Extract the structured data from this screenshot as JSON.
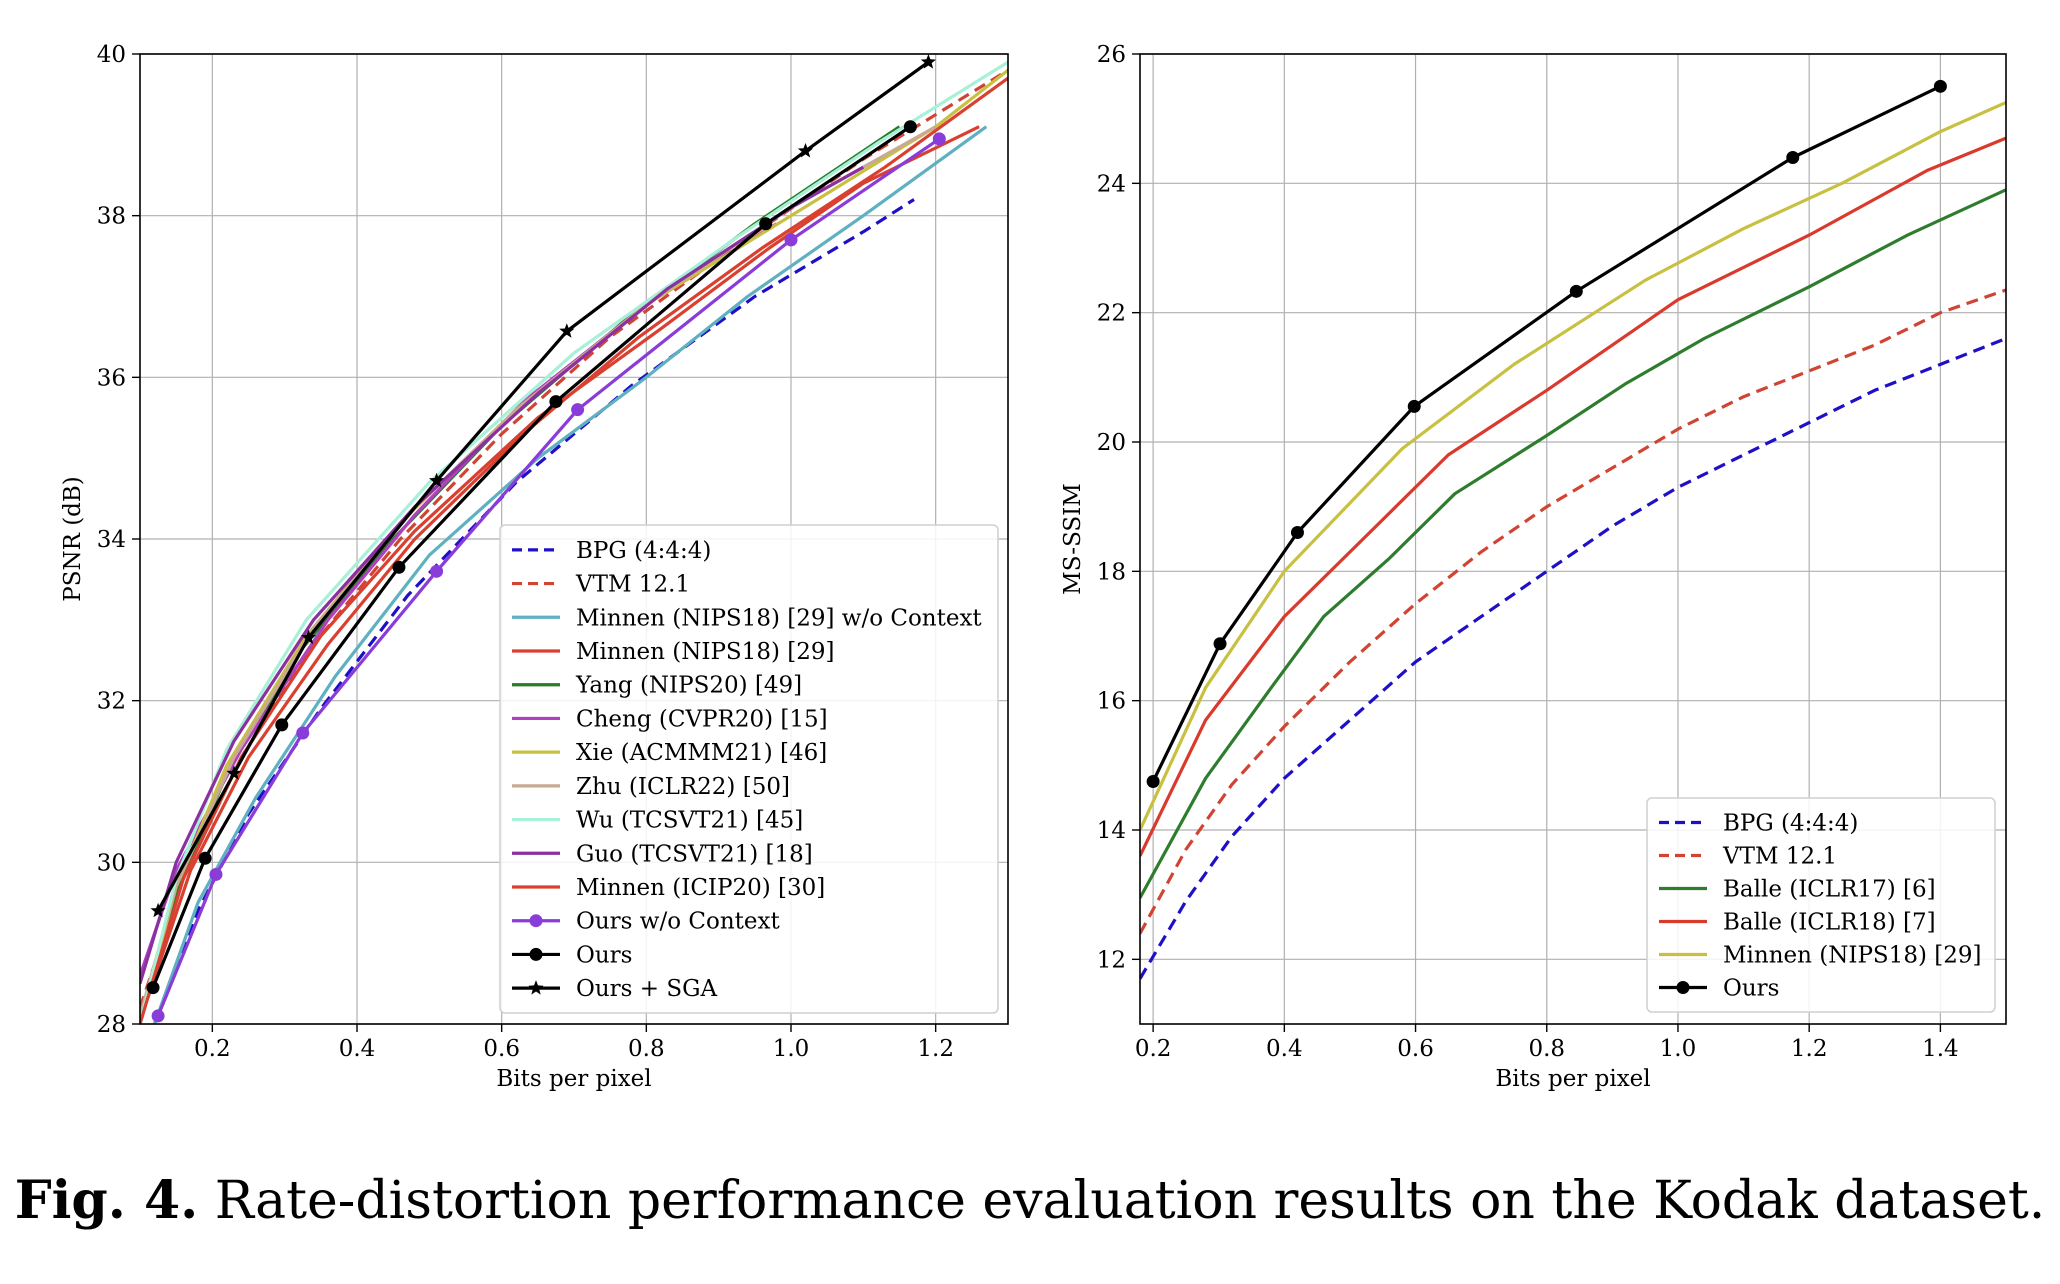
{
  "caption": {
    "label": "Fig. 4.",
    "text": "Rate-distortion performance evaluation results on the Kodak dataset."
  },
  "chart_data": [
    {
      "type": "line",
      "title": "",
      "xlabel": "Bits per pixel",
      "ylabel": "PSNR (dB)",
      "xlim": [
        0.1,
        1.3
      ],
      "ylim": [
        28,
        40
      ],
      "xticks": [
        "0.2",
        "0.4",
        "0.6",
        "0.8",
        "1.0",
        "1.2"
      ],
      "yticks": [
        "28",
        "30",
        "32",
        "34",
        "36",
        "38",
        "40"
      ],
      "grid": true,
      "legend_position": "lower-right",
      "series": [
        {
          "name": "BPG (4:4:4)",
          "color": "#1f10c8",
          "dash": "dashed",
          "marker": "none",
          "x": [
            0.12,
            0.18,
            0.25,
            0.35,
            0.47,
            0.62,
            0.78,
            0.95,
            1.1,
            1.17
          ],
          "y": [
            28.0,
            29.4,
            30.6,
            31.9,
            33.3,
            34.7,
            35.9,
            37.0,
            37.8,
            38.2
          ]
        },
        {
          "name": "VTM 12.1",
          "color": "#d04433",
          "dash": "dashed",
          "marker": "none",
          "x": [
            0.1,
            0.16,
            0.24,
            0.34,
            0.46,
            0.6,
            0.75,
            0.92,
            1.1,
            1.3
          ],
          "y": [
            28.2,
            29.8,
            31.3,
            32.7,
            34.0,
            35.3,
            36.5,
            37.6,
            38.7,
            39.8
          ]
        },
        {
          "name": "Minnen (NIPS18) [29] w/o Context",
          "color": "#5fb0c0",
          "dash": "solid",
          "marker": "none",
          "x": [
            0.12,
            0.18,
            0.26,
            0.37,
            0.5,
            0.65,
            0.8,
            0.94,
            1.1,
            1.27
          ],
          "y": [
            28.0,
            29.5,
            30.8,
            32.3,
            33.8,
            35.0,
            36.0,
            37.0,
            38.0,
            39.1
          ]
        },
        {
          "name": "Minnen (NIPS18) [29]",
          "color": "#d94030",
          "dash": "solid",
          "marker": "none",
          "x": [
            0.11,
            0.17,
            0.25,
            0.36,
            0.48,
            0.63,
            0.79,
            0.96,
            1.13,
            1.3
          ],
          "y": [
            28.3,
            29.9,
            31.3,
            32.7,
            34.0,
            35.3,
            36.5,
            37.6,
            38.6,
            39.7
          ]
        },
        {
          "name": "Yang (NIPS20) [49]",
          "color": "#2a7a2a",
          "dash": "solid",
          "marker": "none",
          "x": [
            0.1,
            0.15,
            0.22,
            0.32,
            0.45,
            0.6,
            0.77,
            0.95,
            1.15
          ],
          "y": [
            28.0,
            29.6,
            31.1,
            32.6,
            34.0,
            35.4,
            36.7,
            37.9,
            39.1
          ]
        },
        {
          "name": "Cheng (CVPR20) [15]",
          "color": "#b040c0",
          "dash": "solid",
          "marker": "none",
          "x": [
            0.1,
            0.15,
            0.24,
            0.36,
            0.48,
            0.63,
            0.8,
            0.98
          ],
          "y": [
            28.6,
            29.9,
            31.4,
            33.0,
            34.3,
            35.7,
            36.9,
            37.9
          ]
        },
        {
          "name": "Xie (ACMMM21) [46]",
          "color": "#c8c040",
          "dash": "solid",
          "marker": "none",
          "x": [
            0.1,
            0.15,
            0.22,
            0.33,
            0.46,
            0.62,
            0.8,
            1.0,
            1.2,
            1.3
          ],
          "y": [
            28.0,
            29.7,
            31.2,
            32.8,
            34.2,
            35.6,
            36.9,
            38.0,
            39.1,
            39.8
          ]
        },
        {
          "name": "Zhu (ICLR22) [50]",
          "color": "#c8aa90",
          "dash": "solid",
          "marker": "none",
          "x": [
            0.1,
            0.15,
            0.23,
            0.34,
            0.47,
            0.62,
            0.8,
            1.0,
            1.2
          ],
          "y": [
            28.1,
            29.7,
            31.3,
            32.9,
            34.3,
            35.6,
            36.9,
            38.1,
            39.1
          ]
        },
        {
          "name": "Wu (TCSVT21) [45]",
          "color": "#a8f0d8",
          "dash": "solid",
          "marker": "none",
          "x": [
            0.1,
            0.15,
            0.22,
            0.33,
            0.5,
            0.7,
            0.92,
            1.12,
            1.3
          ],
          "y": [
            28.0,
            29.8,
            31.4,
            33.0,
            34.7,
            36.3,
            37.7,
            38.9,
            39.9
          ]
        },
        {
          "name": "Guo (TCSVT21) [18]",
          "color": "#8a30a0",
          "dash": "solid",
          "marker": "none",
          "x": [
            0.1,
            0.15,
            0.23,
            0.34,
            0.48,
            0.65,
            0.83,
            1.0,
            1.1
          ],
          "y": [
            28.5,
            30.0,
            31.5,
            33.0,
            34.4,
            35.8,
            37.1,
            38.1,
            38.6
          ]
        },
        {
          "name": "Minnen (ICIP20) [30]",
          "color": "#d94030",
          "dash": "solid",
          "marker": "none",
          "x": [
            0.1,
            0.16,
            0.24,
            0.35,
            0.48,
            0.65,
            0.82,
            0.97,
            1.1,
            1.26
          ],
          "y": [
            28.0,
            29.8,
            31.3,
            32.8,
            34.1,
            35.5,
            36.6,
            37.6,
            38.4,
            39.1
          ]
        },
        {
          "name": "Ours  w/o Context",
          "color": "#8a3cd8",
          "dash": "solid",
          "marker": "circle",
          "x": [
            0.125,
            0.205,
            0.325,
            0.51,
            0.705,
            1.0,
            1.205
          ],
          "y": [
            28.1,
            29.85,
            31.6,
            33.6,
            35.6,
            37.7,
            38.95
          ]
        },
        {
          "name": "Ours",
          "color": "#000000",
          "dash": "solid",
          "marker": "circle",
          "x": [
            0.118,
            0.19,
            0.296,
            0.458,
            0.675,
            0.965,
            1.165
          ],
          "y": [
            28.45,
            30.05,
            31.7,
            33.65,
            35.7,
            37.9,
            39.1
          ]
        },
        {
          "name": "Ours + SGA",
          "color": "#000000",
          "dash": "solid",
          "marker": "star",
          "x": [
            0.125,
            0.23,
            0.333,
            0.51,
            0.69,
            1.02,
            1.19
          ],
          "y": [
            29.4,
            31.1,
            32.78,
            34.72,
            36.57,
            38.8,
            39.9
          ]
        }
      ]
    },
    {
      "type": "line",
      "title": "",
      "xlabel": "Bits per pixel",
      "ylabel": "MS-SSIM",
      "xlim": [
        0.18,
        1.5
      ],
      "ylim": [
        11,
        26
      ],
      "xticks": [
        "0.2",
        "0.4",
        "0.6",
        "0.8",
        "1.0",
        "1.2",
        "1.4"
      ],
      "yticks": [
        "12",
        "14",
        "16",
        "18",
        "20",
        "22",
        "24",
        "26"
      ],
      "grid": true,
      "legend_position": "lower-right",
      "series": [
        {
          "name": "BPG (4:4:4)",
          "color": "#1f10c8",
          "dash": "dashed",
          "marker": "none",
          "x": [
            0.18,
            0.25,
            0.32,
            0.4,
            0.5,
            0.6,
            0.7,
            0.8,
            0.9,
            1.0,
            1.1,
            1.2,
            1.3,
            1.4,
            1.5
          ],
          "y": [
            11.7,
            12.9,
            13.9,
            14.8,
            15.7,
            16.6,
            17.3,
            18.0,
            18.7,
            19.3,
            19.8,
            20.3,
            20.8,
            21.2,
            21.6
          ]
        },
        {
          "name": "VTM 12.1",
          "color": "#d04433",
          "dash": "dashed",
          "marker": "none",
          "x": [
            0.18,
            0.25,
            0.32,
            0.4,
            0.5,
            0.6,
            0.7,
            0.8,
            0.9,
            1.0,
            1.1,
            1.2,
            1.3,
            1.4,
            1.5
          ],
          "y": [
            12.4,
            13.7,
            14.7,
            15.6,
            16.6,
            17.5,
            18.3,
            19.0,
            19.6,
            20.2,
            20.7,
            21.1,
            21.5,
            22.0,
            22.35
          ]
        },
        {
          "name": "Balle (ICLR17) [6]",
          "color": "#2e7d2e",
          "dash": "solid",
          "marker": "none",
          "x": [
            0.18,
            0.28,
            0.38,
            0.46,
            0.56,
            0.66,
            0.8,
            0.92,
            1.04,
            1.2,
            1.35,
            1.5
          ],
          "y": [
            12.95,
            14.8,
            16.2,
            17.3,
            18.2,
            19.2,
            20.1,
            20.9,
            21.6,
            22.4,
            23.2,
            23.9
          ]
        },
        {
          "name": "Balle (ICLR18) [7]",
          "color": "#d93a2c",
          "dash": "solid",
          "marker": "none",
          "x": [
            0.18,
            0.28,
            0.4,
            0.52,
            0.65,
            0.8,
            1.0,
            1.2,
            1.38,
            1.5
          ],
          "y": [
            13.6,
            15.7,
            17.3,
            18.5,
            19.8,
            20.8,
            22.2,
            23.2,
            24.2,
            24.7
          ]
        },
        {
          "name": "Minnen (NIPS18) [29]",
          "color": "#c8c040",
          "dash": "solid",
          "marker": "none",
          "x": [
            0.18,
            0.28,
            0.4,
            0.58,
            0.75,
            0.95,
            1.1,
            1.25,
            1.4,
            1.5
          ],
          "y": [
            14.0,
            16.2,
            18.0,
            19.9,
            21.2,
            22.5,
            23.3,
            24.0,
            24.8,
            25.25
          ]
        },
        {
          "name": "Ours",
          "color": "#000000",
          "dash": "solid",
          "marker": "circle",
          "x": [
            0.2,
            0.302,
            0.42,
            0.598,
            0.845,
            1.175,
            1.4
          ],
          "y": [
            14.75,
            16.88,
            18.6,
            20.55,
            22.33,
            24.4,
            25.5
          ]
        }
      ]
    }
  ]
}
